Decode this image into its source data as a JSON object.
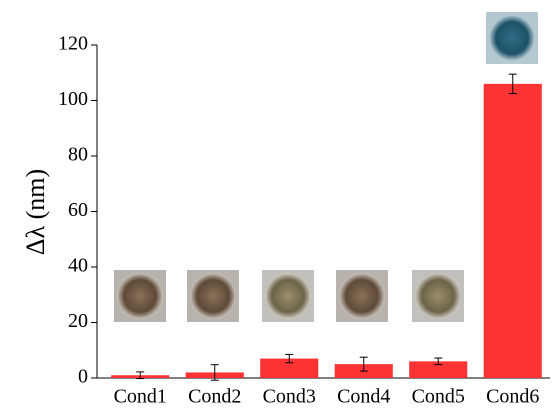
{
  "chart_data": {
    "type": "bar",
    "ylabel": "Δλ (nm)",
    "categories": [
      "Cond1",
      "Cond2",
      "Cond3",
      "Cond4",
      "Cond5",
      "Cond6"
    ],
    "values": [
      1,
      2,
      7,
      5,
      6,
      106
    ],
    "errors": [
      1.2,
      2.8,
      1.5,
      2.5,
      1.2,
      3.5
    ],
    "color": "#ff3333",
    "ylim": [
      0,
      120
    ],
    "yticks": [
      0,
      20,
      40,
      60,
      80,
      100,
      120
    ]
  }
}
